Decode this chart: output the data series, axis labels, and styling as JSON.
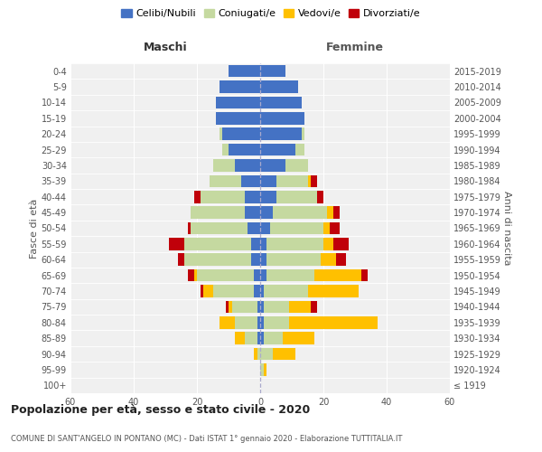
{
  "age_groups": [
    "100+",
    "95-99",
    "90-94",
    "85-89",
    "80-84",
    "75-79",
    "70-74",
    "65-69",
    "60-64",
    "55-59",
    "50-54",
    "45-49",
    "40-44",
    "35-39",
    "30-34",
    "25-29",
    "20-24",
    "15-19",
    "10-14",
    "5-9",
    "0-4"
  ],
  "birth_years": [
    "≤ 1919",
    "1920-1924",
    "1925-1929",
    "1930-1934",
    "1935-1939",
    "1940-1944",
    "1945-1949",
    "1950-1954",
    "1955-1959",
    "1960-1964",
    "1965-1969",
    "1970-1974",
    "1975-1979",
    "1980-1984",
    "1985-1989",
    "1990-1994",
    "1995-1999",
    "2000-2004",
    "2005-2009",
    "2010-2014",
    "2015-2019"
  ],
  "male": {
    "celibi": [
      0,
      0,
      0,
      1,
      1,
      1,
      2,
      2,
      3,
      3,
      4,
      5,
      5,
      6,
      8,
      10,
      12,
      14,
      14,
      13,
      10
    ],
    "coniugati": [
      0,
      0,
      1,
      4,
      7,
      8,
      13,
      18,
      21,
      21,
      18,
      17,
      14,
      10,
      7,
      2,
      1,
      0,
      0,
      0,
      0
    ],
    "vedovi": [
      0,
      0,
      1,
      3,
      5,
      1,
      3,
      1,
      0,
      0,
      0,
      0,
      0,
      0,
      0,
      0,
      0,
      0,
      0,
      0,
      0
    ],
    "divorziati": [
      0,
      0,
      0,
      0,
      0,
      1,
      1,
      2,
      2,
      5,
      1,
      0,
      2,
      0,
      0,
      0,
      0,
      0,
      0,
      0,
      0
    ]
  },
  "female": {
    "nubili": [
      0,
      0,
      0,
      1,
      1,
      1,
      1,
      2,
      2,
      2,
      3,
      4,
      5,
      5,
      8,
      11,
      13,
      14,
      13,
      12,
      8
    ],
    "coniugate": [
      0,
      1,
      4,
      6,
      8,
      8,
      14,
      15,
      17,
      18,
      17,
      17,
      13,
      10,
      7,
      3,
      1,
      0,
      0,
      0,
      0
    ],
    "vedove": [
      0,
      1,
      7,
      10,
      28,
      7,
      16,
      15,
      5,
      3,
      2,
      2,
      0,
      1,
      0,
      0,
      0,
      0,
      0,
      0,
      0
    ],
    "divorziate": [
      0,
      0,
      0,
      0,
      0,
      2,
      0,
      2,
      3,
      5,
      3,
      2,
      2,
      2,
      0,
      0,
      0,
      0,
      0,
      0,
      0
    ]
  },
  "colors": {
    "celibi": "#4472c4",
    "coniugati": "#c5d9a0",
    "vedovi": "#ffc000",
    "divorziati": "#c0000a"
  },
  "xlim": 60,
  "title": "Popolazione per età, sesso e stato civile - 2020",
  "subtitle": "COMUNE DI SANT'ANGELO IN PONTANO (MC) - Dati ISTAT 1° gennaio 2020 - Elaborazione TUTTITALIA.IT",
  "ylabel": "Fasce di età",
  "ylabel_right": "Anni di nascita",
  "xlabel_left": "Maschi",
  "xlabel_right": "Femmine",
  "legend_labels": [
    "Celibi/Nubili",
    "Coniugati/e",
    "Vedovi/e",
    "Divorziati/e"
  ],
  "bg_color": "#f0f0f0"
}
